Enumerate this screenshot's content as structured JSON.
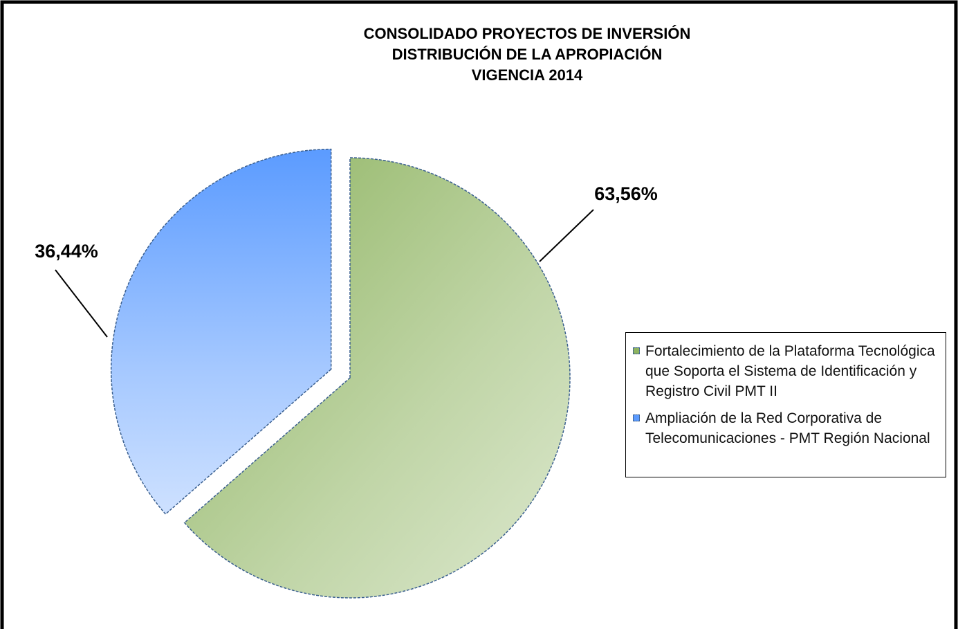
{
  "chart_data": {
    "type": "pie",
    "title": [
      "CONSOLIDADO PROYECTOS DE INVERSIÓN",
      "DISTRIBUCIÓN  DE LA APROPIACIÓN",
      "VIGENCIA  2014"
    ],
    "categories": [
      "Fortalecimiento de la Plataforma Tecnológica que Soporta el Sistema de Identificación y Registro Civil PMT II",
      "Ampliación de la Red Corporativa de Telecomunicaciones - PMT Región Nacional"
    ],
    "values": [
      63.56,
      36.44
    ],
    "value_labels": [
      "63,56%",
      "36,44%"
    ],
    "colors": [
      "#8db35f",
      "#5b9bff"
    ],
    "legend": "right"
  }
}
